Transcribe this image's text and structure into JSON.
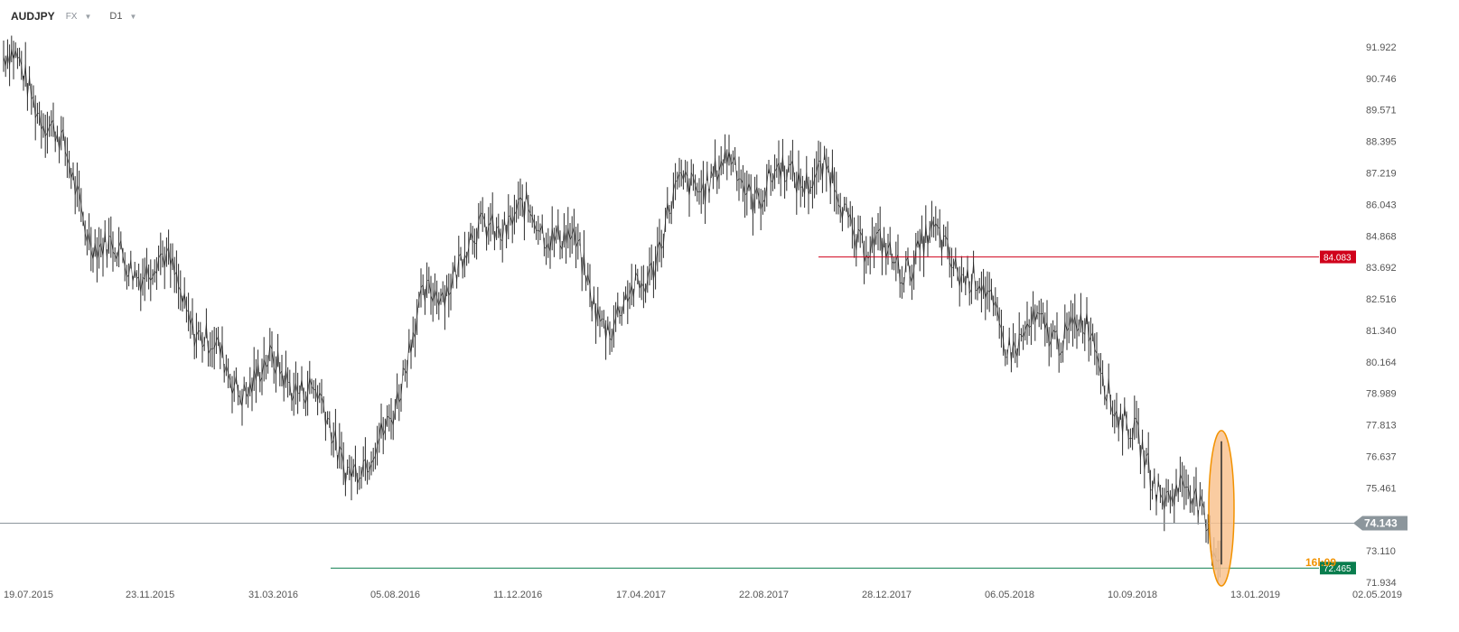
{
  "toolbar": {
    "symbol": "AUDJPY",
    "market": "FX",
    "timeframe": "D1",
    "market_caret_icon": "caret-down-icon",
    "timeframe_caret_icon": "caret-down-icon"
  },
  "colors": {
    "resistance": "#d0021b",
    "support": "#0a7d4e",
    "current": "#8c969c",
    "highlight_fill": "#f9c391",
    "highlight_stroke": "#f29200",
    "candle": "#2b2b2b",
    "orange_text": "#f29200"
  },
  "price_axis": {
    "ticks": [
      "91.922",
      "90.746",
      "89.571",
      "88.395",
      "87.219",
      "86.043",
      "84.868",
      "83.692",
      "82.516",
      "81.340",
      "80.164",
      "78.989",
      "77.813",
      "76.637",
      "75.461",
      "73.110",
      "71.934"
    ]
  },
  "date_axis": {
    "ticks": [
      "19.07.2015",
      "23.11.2015",
      "31.03.2016",
      "05.08.2016",
      "11.12.2016",
      "17.04.2017",
      "22.08.2017",
      "28.12.2017",
      "06.05.2018",
      "10.09.2018",
      "13.01.2019",
      "02.05.2019"
    ]
  },
  "levels": {
    "resistance": "84.083",
    "current": "74.143",
    "support": "72.465",
    "partial_label": "16l:09"
  },
  "chart_data": {
    "type": "line",
    "symbol": "AUDJPY",
    "timeframe": "D1",
    "x": [
      "19.07.2015",
      "23.11.2015",
      "31.03.2016",
      "05.08.2016",
      "11.12.2016",
      "17.04.2017",
      "22.08.2017",
      "28.12.2017",
      "06.05.2018",
      "10.09.2018",
      "13.01.2019"
    ],
    "series": [
      {
        "values": [
          91.2,
          84.0,
          80.0,
          76.8,
          86.5,
          82.3,
          88.0,
          85.5,
          82.8,
          80.0,
          72.465
        ]
      }
    ],
    "ylim": [
      71.934,
      91.922
    ],
    "horizontal_levels": [
      84.083,
      74.143,
      72.465
    ],
    "grid": false
  }
}
